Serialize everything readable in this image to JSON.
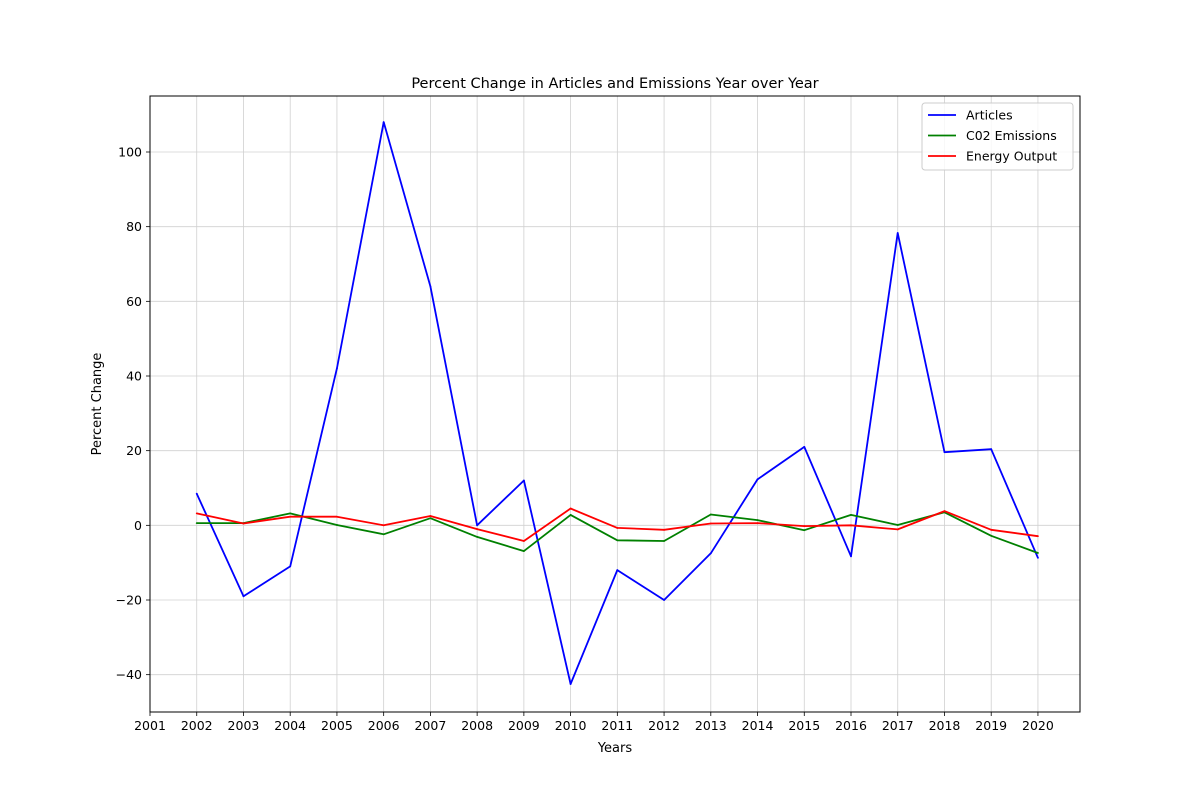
{
  "chart_data": {
    "type": "line",
    "title": "Percent Change in Articles and Emissions Year over Year",
    "xlabel": "Years",
    "ylabel": "Percent Change",
    "x_ticks": [
      "2001",
      "2002",
      "2003",
      "2004",
      "2005",
      "2006",
      "2007",
      "2008",
      "2009",
      "2010",
      "2011",
      "2012",
      "2013",
      "2014",
      "2015",
      "2016",
      "2017",
      "2018",
      "2019",
      "2020"
    ],
    "x": [
      2002,
      2003,
      2004,
      2005,
      2006,
      2007,
      2008,
      2009,
      2010,
      2011,
      2012,
      2013,
      2014,
      2015,
      2016,
      2017,
      2018,
      2019,
      2020
    ],
    "xlim": [
      2001,
      2020.9
    ],
    "ylim": [
      -50,
      115
    ],
    "y_ticks": [
      -40,
      -20,
      0,
      20,
      40,
      60,
      80,
      100
    ],
    "grid": true,
    "legend_position": "top-right",
    "series": [
      {
        "name": "Articles",
        "color": "#0000ff",
        "values": [
          8.5,
          -19,
          -11,
          42,
          108,
          64,
          0,
          12,
          -42.5,
          -12,
          -20,
          -7.5,
          12.3,
          21,
          -8.3,
          78.3,
          19.6,
          20.4,
          -8.7
        ]
      },
      {
        "name": "C02 Emissions",
        "color": "#008000",
        "values": [
          0.6,
          0.6,
          3.2,
          0.1,
          -2.4,
          1.9,
          -3.1,
          -6.9,
          2.8,
          -4,
          -4.2,
          2.9,
          1.4,
          -1.3,
          2.8,
          0.1,
          3.5,
          -2.8,
          -7.4
        ]
      },
      {
        "name": "Energy Output",
        "color": "#ff0000",
        "values": [
          3.2,
          0.5,
          2.3,
          2.3,
          0,
          2.5,
          -1,
          -4.2,
          4.5,
          -0.7,
          -1.2,
          0.5,
          0.6,
          -0.2,
          0,
          -1.1,
          3.8,
          -1.2,
          -2.9
        ]
      }
    ]
  }
}
